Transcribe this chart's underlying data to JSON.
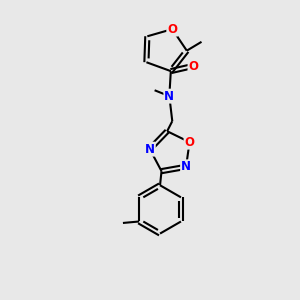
{
  "bg_color": "#e8e8e8",
  "bond_color": "#000000",
  "O_color": "#ff0000",
  "N_color": "#0000ff",
  "line_width": 1.5,
  "font_size": 8.5,
  "figsize": [
    3.0,
    3.0
  ],
  "dpi": 100,
  "xlim": [
    0,
    10
  ],
  "ylim": [
    0,
    10
  ]
}
